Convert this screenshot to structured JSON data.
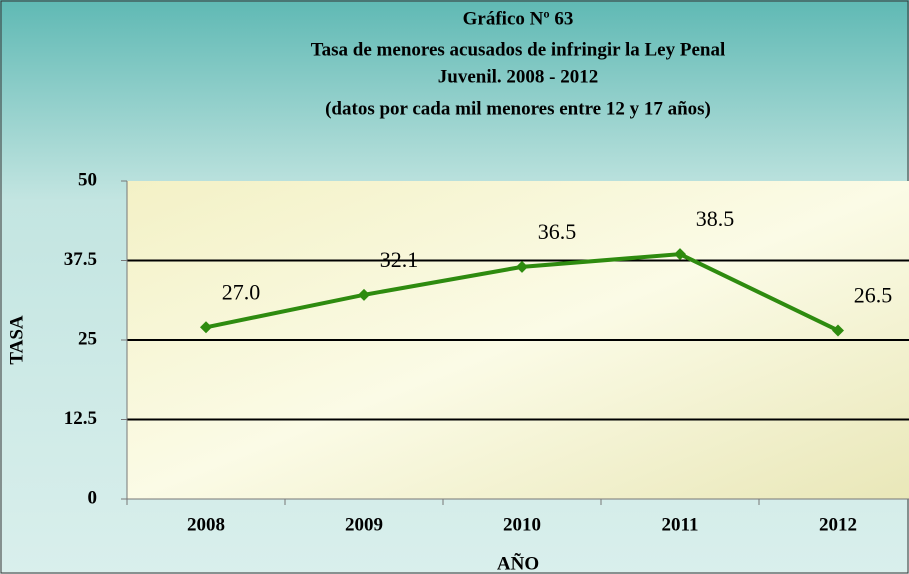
{
  "chart_data": {
    "type": "line",
    "title": [
      "Gráfico Nº 63",
      "Tasa de menores acusados de infringir la Ley Penal",
      "Juvenil. 2008 - 2012",
      "(datos por cada mil menores entre 12 y 17 años)"
    ],
    "x_label": "AÑO",
    "y_label": "TASA",
    "categories": [
      "2008",
      "2009",
      "2010",
      "2011",
      "2012"
    ],
    "values": [
      27.0,
      32.1,
      36.5,
      38.5,
      26.5
    ],
    "value_labels": [
      "27.0",
      "32.1",
      "36.5",
      "38.5",
      "26.5"
    ],
    "color": "#2e8b0f",
    "ylim": [
      0,
      50
    ],
    "yticks": [
      0,
      12.5,
      25,
      37.5,
      50
    ],
    "grid": true
  }
}
